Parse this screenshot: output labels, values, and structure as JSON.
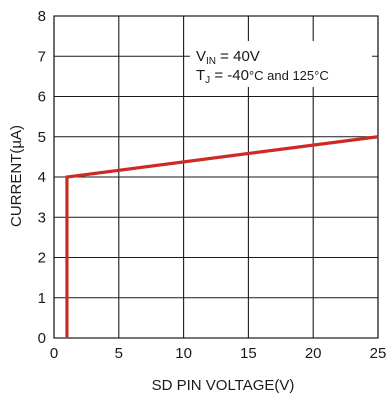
{
  "chart_data": {
    "type": "line",
    "title": "",
    "xlabel": "SD PIN VOLTAGE(V)",
    "ylabel": "CURRENT(µA)",
    "xlim": [
      0,
      25
    ],
    "ylim": [
      0,
      8
    ],
    "xticks": [
      0,
      5,
      10,
      15,
      20,
      25
    ],
    "yticks": [
      0,
      1,
      2,
      3,
      4,
      5,
      6,
      7,
      8
    ],
    "grid": true,
    "series": [
      {
        "x": [
          1,
          1,
          25
        ],
        "y": [
          0,
          4,
          5
        ],
        "color": "#cc2b22"
      }
    ],
    "annotations": {
      "vin": {
        "main": "V",
        "sub": "IN",
        "rest": " = 40V"
      },
      "tj": {
        "main": "T",
        "sub": "J",
        "rest_a": " = -40",
        "rest_b": "°C and 125°C"
      }
    },
    "grid_color": "#1a1a1a",
    "text_color": "#1a1a1a"
  }
}
